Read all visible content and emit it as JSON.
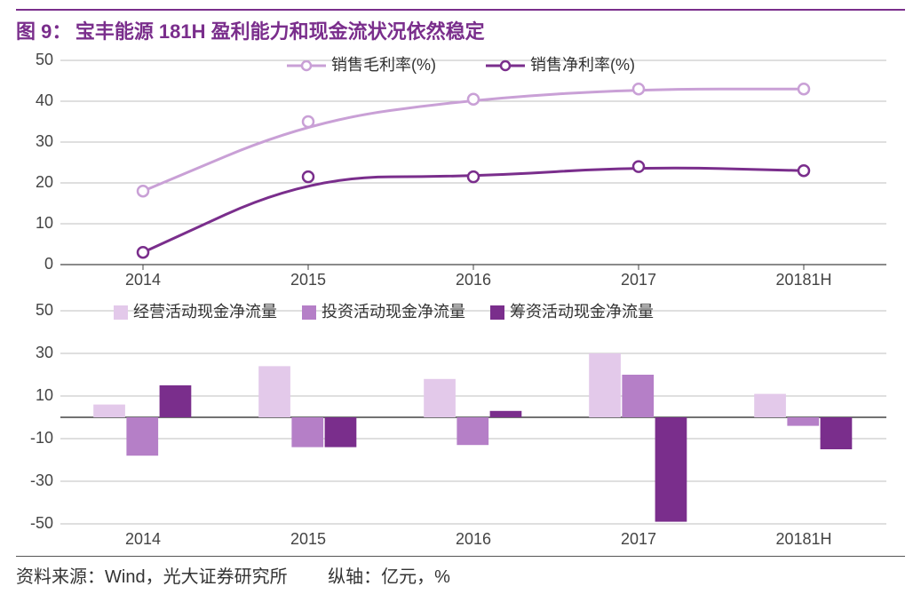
{
  "figure_label": "图 9：",
  "figure_title": "宝丰能源 181H 盈利能力和现金流状况依然稳定",
  "categories": [
    "2014",
    "2015",
    "2016",
    "2017",
    "20181H"
  ],
  "top_chart": {
    "type": "line",
    "ylim": [
      0,
      50
    ],
    "ytick_step": 10,
    "yticks": [
      0,
      10,
      20,
      30,
      40,
      50
    ],
    "axis_fontsize": 18,
    "axis_color": "#444444",
    "grid_color": "#bfbfbf",
    "series": [
      {
        "name": "销售毛利率(%)",
        "values": [
          18,
          35,
          40.5,
          43,
          43
        ],
        "line_color": "#c9a0d6",
        "line_width": 3,
        "marker": "circle-open",
        "marker_color": "#c9a0d6",
        "marker_size": 6
      },
      {
        "name": "销售净利率(%)",
        "values": [
          3,
          21.5,
          21.5,
          24,
          23
        ],
        "line_color": "#7a2e8c",
        "line_width": 3,
        "marker": "circle-open",
        "marker_color": "#7a2e8c",
        "marker_size": 6
      }
    ],
    "legend_fontsize": 18
  },
  "bottom_chart": {
    "type": "bar",
    "ylim": [
      -50,
      50
    ],
    "ytick_step": 20,
    "yticks": [
      -50,
      -30,
      -10,
      10,
      30,
      50
    ],
    "axis_fontsize": 18,
    "axis_color": "#444444",
    "grid_color": "#bfbfbf",
    "bar_group_width": 0.6,
    "series": [
      {
        "name": "经营活动现金净流量",
        "values": [
          6,
          24,
          18,
          30,
          11
        ],
        "color": "#e3c9ea"
      },
      {
        "name": "投资活动现金净流量",
        "values": [
          -18,
          -14,
          -13,
          20,
          -4
        ],
        "color": "#b57fc7"
      },
      {
        "name": "筹资活动现金净流量",
        "values": [
          15,
          -14,
          3,
          -49,
          -15
        ],
        "color": "#7a2e8c"
      }
    ],
    "legend_fontsize": 18
  },
  "source_label": "资料来源：Wind，光大证券研究所",
  "axis_note": "纵轴：亿元，%",
  "colors": {
    "title": "#7a2e8c",
    "text": "#333333",
    "background": "#ffffff"
  }
}
